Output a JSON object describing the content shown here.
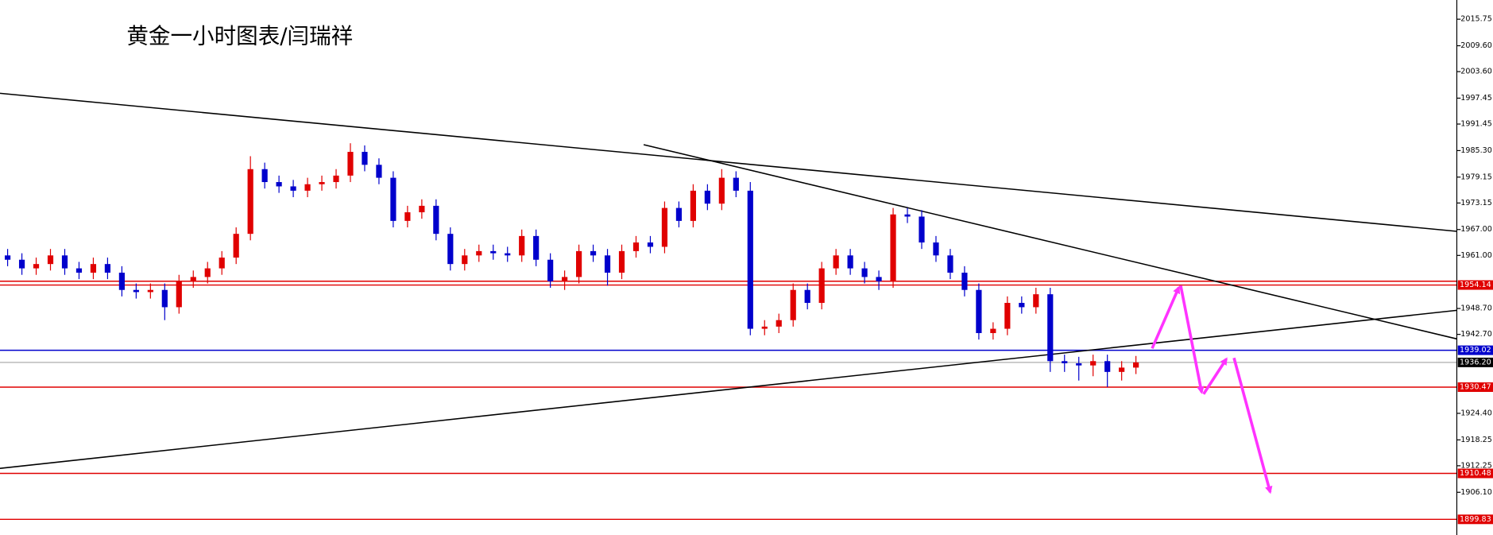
{
  "chart_data": {
    "type": "candlestick",
    "title": "黄金一小时图表/闫瑞祥",
    "open": [
      1961,
      1960,
      1958,
      1959,
      1961,
      1958,
      1957,
      1959,
      1957,
      1953,
      1952.5,
      1953,
      1949,
      1955,
      1956,
      1958,
      1960.5,
      1966,
      1981,
      1978,
      1977,
      1976,
      1977.5,
      1978,
      1979.5,
      1985,
      1982,
      1979,
      1969,
      1971,
      1972.5,
      1966,
      1959,
      1961,
      1962,
      1961.5,
      1961,
      1965.5,
      1960,
      1955,
      1956,
      1962,
      1961,
      1957,
      1962,
      1964,
      1963,
      1972,
      1969,
      1976,
      1973,
      1979,
      1976,
      1944,
      1944.5,
      1946,
      1953,
      1950,
      1958,
      1961,
      1958,
      1956,
      1955,
      1970.5,
      1970,
      1964,
      1961,
      1957,
      1953,
      1943,
      1944,
      1950,
      1949,
      1952,
      1936.5,
      1936,
      1935.5,
      1936.5,
      1934,
      1935
    ],
    "high": [
      1962.5,
      1961.5,
      1960.5,
      1962.5,
      1962.5,
      1959.5,
      1960.5,
      1960.5,
      1958.5,
      1954.5,
      1954.5,
      1954.5,
      1956.5,
      1957.5,
      1959.5,
      1962,
      1967.5,
      1984,
      1982.5,
      1979.5,
      1978.5,
      1979,
      1979.5,
      1981,
      1987,
      1986.5,
      1983.5,
      1980.5,
      1972.5,
      1974,
      1974,
      1967.5,
      1962.5,
      1963.5,
      1963.5,
      1963,
      1967,
      1967,
      1961.5,
      1957.5,
      1963.5,
      1963.5,
      1962.5,
      1963.5,
      1965.5,
      1965.5,
      1973.5,
      1973.5,
      1977.5,
      1977.5,
      1981,
      1980.5,
      1978,
      1946,
      1947.5,
      1954.5,
      1954.5,
      1959.5,
      1962.5,
      1962.5,
      1959.5,
      1957.5,
      1972,
      1972,
      1971.5,
      1965.5,
      1962.5,
      1958.5,
      1954.5,
      1945.5,
      1951.5,
      1951.5,
      1953.5,
      1953.5,
      1938,
      1937.5,
      1938,
      1938,
      1936.5,
      1937.7
    ],
    "low": [
      1958.5,
      1956.5,
      1956.5,
      1957.5,
      1956.5,
      1955.5,
      1955.5,
      1955.5,
      1951.5,
      1951,
      1951,
      1946,
      1947.5,
      1953.5,
      1954.5,
      1956.5,
      1959,
      1964.5,
      1976.5,
      1975.5,
      1974.5,
      1974.5,
      1976,
      1976.5,
      1978,
      1980.5,
      1977.5,
      1967.5,
      1967.5,
      1969.5,
      1964.5,
      1957.5,
      1957.5,
      1959.5,
      1960,
      1959.5,
      1959.5,
      1958.5,
      1953.5,
      1953,
      1954.5,
      1959.5,
      1954,
      1955.5,
      1960.5,
      1961.5,
      1961.5,
      1967.5,
      1967.5,
      1971.5,
      1971.5,
      1974.5,
      1942.5,
      1942.5,
      1943,
      1944.5,
      1948.5,
      1948.5,
      1956.5,
      1956.5,
      1954.5,
      1953,
      1953.5,
      1968.5,
      1962.5,
      1959.5,
      1955.5,
      1951.5,
      1941.5,
      1941.5,
      1942.5,
      1947.5,
      1947.5,
      1934,
      1934,
      1932,
      1933,
      1930.5,
      1932,
      1933.5
    ],
    "close": [
      1960,
      1958,
      1959,
      1961,
      1958,
      1957,
      1959,
      1957,
      1953,
      1952.5,
      1953,
      1949,
      1955,
      1956,
      1958,
      1960.5,
      1966,
      1981,
      1978,
      1977,
      1976,
      1977.5,
      1978,
      1979.5,
      1985,
      1982,
      1979,
      1969,
      1971,
      1972.5,
      1966,
      1959,
      1961,
      1962,
      1961.5,
      1961,
      1965.5,
      1960,
      1955,
      1956,
      1962,
      1961,
      1957,
      1962,
      1964,
      1963,
      1972,
      1969,
      1976,
      1973,
      1979,
      1976,
      1944,
      1944.5,
      1946,
      1953,
      1950,
      1958,
      1961,
      1958,
      1956,
      1955,
      1970.5,
      1970,
      1964,
      1961,
      1957,
      1953,
      1943,
      1944,
      1950,
      1949,
      1952,
      1936.5,
      1936,
      1935.5,
      1936.5,
      1934,
      1935,
      1936.2
    ],
    "up_color": "#e00000",
    "down_color": "#0000cc",
    "ylim": [
      1896.2,
      2020.2
    ],
    "yticks": [
      2015.75,
      {
        "value": 2009.6,
        "label": "2009.60"
      },
      {
        "value": 2003.6,
        "label": "2003.60"
      },
      1997.45,
      1991.45,
      {
        "value": 1985.3,
        "label": "1985.30"
      },
      1979.15,
      1973.15,
      {
        "value": 1967,
        "label": "1967.00"
      },
      {
        "value": 1961,
        "label": "1961.00"
      },
      {
        "value": 1948.7,
        "label": "1948.70"
      },
      {
        "value": 1942.7,
        "label": "1942.70"
      },
      {
        "value": 1924.4,
        "label": "1924.40"
      },
      1918.25,
      1912.25,
      {
        "value": 1906.1,
        "label": "1906.10"
      }
    ],
    "levels": [
      {
        "value": 1954.14,
        "color": "#e00000"
      },
      {
        "value": 1939.02,
        "color": "#0000cc"
      },
      {
        "value": 1936.2,
        "label": "1936.20",
        "color": "#000000"
      },
      {
        "value": 1930.47,
        "color": "#e00000"
      },
      {
        "value": 1910.48,
        "color": "#e00000"
      },
      {
        "value": 1899.83,
        "color": "#e00000"
      }
    ]
  }
}
